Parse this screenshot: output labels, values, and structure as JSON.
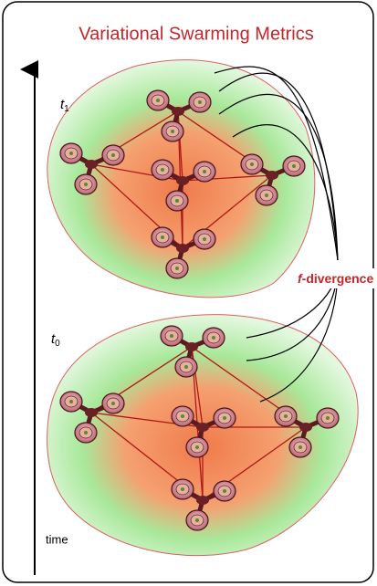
{
  "title": "Variational Swarming Metrics",
  "states": [
    {
      "symbol": "t",
      "subscript": "1"
    },
    {
      "symbol": "t",
      "subscript": "0"
    }
  ],
  "divergence": {
    "symbol": "f",
    "label": "-divergence"
  },
  "axis_label": "time"
}
